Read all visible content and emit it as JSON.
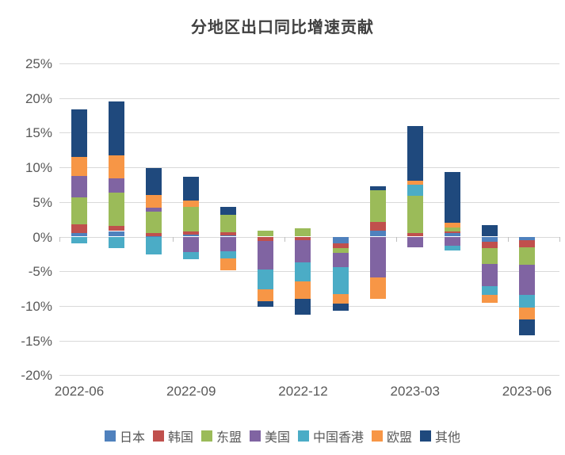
{
  "title": "分地区出口同比增速贡献",
  "axis": {
    "y_ticks": [
      "25%",
      "20%",
      "15%",
      "10%",
      "5%",
      "0%",
      "-5%",
      "-10%",
      "-15%",
      "-20%"
    ],
    "x_tick_labels": [
      "2022-06",
      "2022-09",
      "2022-12",
      "2023-03",
      "2023-06"
    ]
  },
  "colors": {
    "japan_blue": "#4f81bd",
    "korea_red": "#c0504d",
    "asean_green": "#9bbb59",
    "usa_purple": "#8064a2",
    "hongkong_teal": "#4bacc6",
    "eu_orange": "#f79646",
    "other_navy": "#1f497d",
    "grid": "#d9d9d9",
    "axis_text": "#595959",
    "title_text": "#404040"
  },
  "chart_data": {
    "type": "bar",
    "stacked": true,
    "title": "分地区出口同比增速贡献",
    "unit": "%",
    "ylim": [
      -20,
      25
    ],
    "y_tick_step": 5,
    "grid": true,
    "legend_position": "bottom",
    "x": [
      "2022-06",
      "2022-07",
      "2022-08",
      "2022-09",
      "2022-10",
      "2022-11",
      "2022-12",
      "2023-01",
      "2023-02",
      "2023-03",
      "2023-04",
      "2023-05",
      "2023-06"
    ],
    "x_tick_labels": [
      "2022-06",
      "2022-09",
      "2022-12",
      "2023-03",
      "2023-06"
    ],
    "series": [
      {
        "name": "日本",
        "color": "#4f81bd",
        "values": [
          0.5,
          0.8,
          0.1,
          0.3,
          0.15,
          0,
          0,
          -1.0,
          0.9,
          0,
          0.55,
          -0.7,
          -0.55
        ]
      },
      {
        "name": "韩国",
        "color": "#c0504d",
        "values": [
          1.25,
          0.7,
          0.45,
          0.45,
          0.5,
          -0.6,
          -0.55,
          -0.65,
          1.2,
          0.5,
          0.2,
          -0.95,
          -1.05
        ]
      },
      {
        "name": "东盟",
        "color": "#9bbb59",
        "values": [
          3.9,
          4.85,
          3.1,
          3.55,
          2.45,
          0.9,
          1.2,
          -0.65,
          4.55,
          5.35,
          0.6,
          -2.35,
          -2.5
        ]
      },
      {
        "name": "美国",
        "color": "#8064a2",
        "values": [
          3.1,
          2.05,
          0.5,
          -2.2,
          -2.1,
          -4.2,
          -3.15,
          -2.1,
          -5.9,
          -1.5,
          -1.3,
          -3.2,
          -4.35
        ]
      },
      {
        "name": "中国香港",
        "color": "#4bacc6",
        "values": [
          -1.0,
          -1.7,
          -2.6,
          -1.1,
          -1.0,
          -2.85,
          -2.8,
          -3.9,
          0,
          1.65,
          -0.65,
          -1.2,
          -1.8
        ]
      },
      {
        "name": "欧盟",
        "color": "#f79646",
        "values": [
          2.7,
          3.3,
          1.9,
          0.9,
          -1.8,
          -1.7,
          -2.5,
          -1.35,
          -3.05,
          0.55,
          0.7,
          -1.2,
          -1.7
        ]
      },
      {
        "name": "其他",
        "color": "#1f497d",
        "values": [
          6.9,
          7.85,
          3.8,
          3.4,
          1.2,
          -0.75,
          -2.25,
          -1.1,
          0.65,
          7.9,
          7.3,
          1.65,
          -2.3
        ]
      }
    ]
  }
}
